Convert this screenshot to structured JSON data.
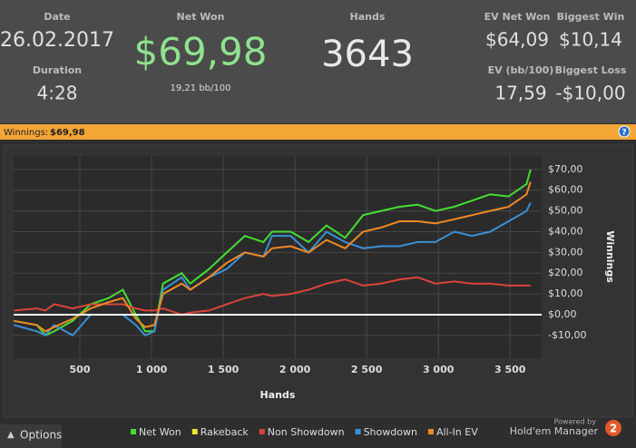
{
  "header": {
    "stats": [
      {
        "label": "Date",
        "value": "26.02.2017"
      },
      {
        "label": "Duration",
        "value": "4:28"
      },
      {
        "label": "Net Won",
        "value": "$69,98",
        "sub": "19,21 bb/100"
      },
      {
        "label": "Hands",
        "value": "3643"
      },
      {
        "label": "EV Net Won",
        "value": "$64,09"
      },
      {
        "label": "Biggest Win",
        "value": "$10,14"
      },
      {
        "label": "EV (bb/100)",
        "value": "17,59"
      },
      {
        "label": "Biggest Loss",
        "value": "-$10,00"
      }
    ]
  },
  "bar": {
    "label": "Winnings:",
    "value": "$69,98"
  },
  "chart_data": {
    "type": "line",
    "xlabel": "Hands",
    "ylabel": "Winnings",
    "x": [
      40,
      200,
      260,
      320,
      450,
      575,
      700,
      800,
      890,
      955,
      1020,
      1080,
      1210,
      1270,
      1400,
      1525,
      1650,
      1780,
      1840,
      1970,
      2095,
      2220,
      2350,
      2475,
      2600,
      2730,
      2855,
      2980,
      3110,
      3235,
      3360,
      3490,
      3615,
      3643
    ],
    "series": [
      {
        "name": "Net Won",
        "color": "#44dd33",
        "values": [
          -3,
          -5,
          -10,
          -8,
          -3,
          5,
          8,
          12,
          0,
          -8,
          -8,
          15,
          20,
          15,
          22,
          30,
          38,
          35,
          40,
          40,
          35,
          43,
          37,
          48,
          50,
          52,
          53,
          50,
          52,
          55,
          58,
          57,
          63,
          69.98
        ]
      },
      {
        "name": "Rakeback",
        "color": "#e8e832",
        "values": [
          0,
          0,
          0,
          0,
          0,
          0,
          0,
          0,
          0,
          0,
          0,
          0,
          0,
          0,
          0,
          0,
          0,
          0,
          0,
          0,
          0,
          0,
          0,
          0,
          0,
          0,
          0,
          0,
          0,
          0,
          0,
          0,
          0,
          0
        ]
      },
      {
        "name": "Non Showdown",
        "color": "#d9443a",
        "values": [
          2,
          3,
          2,
          5,
          3,
          5,
          5,
          5,
          3,
          2,
          2,
          3,
          0,
          1,
          2,
          5,
          8,
          10,
          9,
          10,
          12,
          15,
          17,
          14,
          15,
          17,
          18,
          15,
          16,
          15,
          15,
          14,
          14,
          14
        ]
      },
      {
        "name": "Showdown",
        "color": "#3b8fd6",
        "values": [
          -5,
          -8,
          -10,
          -5,
          -10,
          0,
          0,
          0,
          -5,
          -10,
          -8,
          12,
          18,
          12,
          18,
          22,
          30,
          28,
          38,
          38,
          30,
          40,
          35,
          32,
          33,
          33,
          35,
          35,
          40,
          38,
          40,
          45,
          50,
          54
        ]
      },
      {
        "name": "All-In EV",
        "color": "#f08a24",
        "values": [
          -3,
          -5,
          -8,
          -6,
          -2,
          3,
          6,
          8,
          -2,
          -6,
          -5,
          10,
          15,
          12,
          18,
          25,
          30,
          28,
          32,
          33,
          30,
          36,
          32,
          40,
          42,
          45,
          45,
          44,
          46,
          48,
          50,
          52,
          58,
          64.09
        ]
      }
    ],
    "xlim": [
      38,
      3720
    ],
    "xticks": [
      500,
      {
        "value": 1000,
        "label": "1 000"
      },
      {
        "value": 1500,
        "label": "1 500"
      },
      {
        "value": 2000,
        "label": "2 000"
      },
      {
        "value": 2500,
        "label": "2 500"
      },
      {
        "value": 3000,
        "label": "3 000"
      },
      {
        "value": 3500,
        "label": "3 500"
      }
    ],
    "ylim": [
      -21,
      76.5
    ],
    "yticks": [
      {
        "value": -10,
        "label": "-$10,00"
      },
      {
        "value": 0,
        "label": "$0,00"
      },
      {
        "value": 10,
        "label": "$10,00"
      },
      {
        "value": 20,
        "label": "$20,00"
      },
      {
        "value": 30,
        "label": "$30,00"
      },
      {
        "value": 40,
        "label": "$40,00"
      },
      {
        "value": 50,
        "label": "$50,00"
      },
      {
        "value": 60,
        "label": "$60,00"
      },
      {
        "value": 70,
        "label": "$70,00"
      }
    ],
    "grid": true,
    "zero_line": true
  },
  "footer": {
    "options": "Options",
    "powered": "Powered by",
    "brand": "Hold'em Manager",
    "version": "2"
  }
}
